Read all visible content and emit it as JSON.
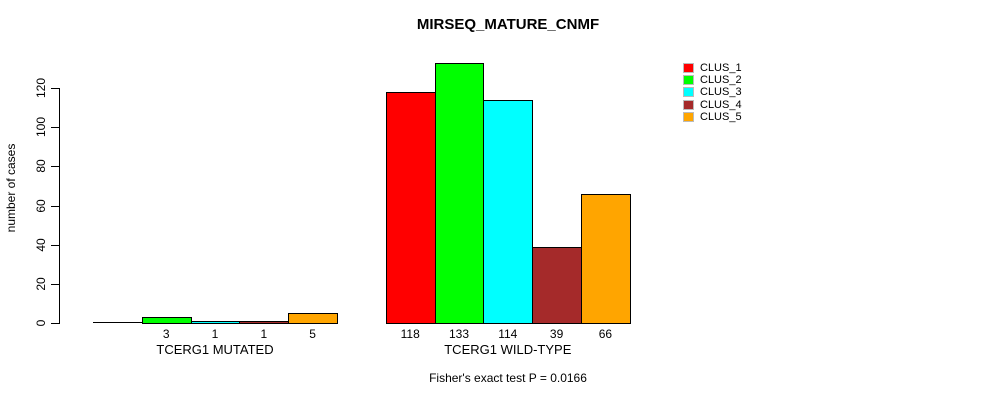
{
  "chart_data": {
    "type": "bar",
    "title": "MIRSEQ_MATURE_CNMF",
    "ylabel": "number of cases",
    "xlabel": "",
    "ylim": [
      0,
      133
    ],
    "yticks": [
      0,
      20,
      40,
      60,
      80,
      100,
      120
    ],
    "grid": false,
    "legend_position": "top-right",
    "categories": [
      "TCERG1 MUTATED",
      "TCERG1 WILD-TYPE"
    ],
    "groups": [
      {
        "label": "TCERG1 MUTATED",
        "values": [
          0,
          3,
          1,
          1,
          5
        ],
        "value_labels": [
          "",
          "3",
          "1",
          "1",
          "5"
        ]
      },
      {
        "label": "TCERG1 WILD-TYPE",
        "values": [
          118,
          133,
          114,
          39,
          66
        ],
        "value_labels": [
          "118",
          "133",
          "114",
          "39",
          "66"
        ]
      }
    ],
    "series": [
      {
        "name": "CLUS_1",
        "color": "#FF0000"
      },
      {
        "name": "CLUS_2",
        "color": "#00FF00"
      },
      {
        "name": "CLUS_3",
        "color": "#00FFFF"
      },
      {
        "name": "CLUS_4",
        "color": "#A52A2A"
      },
      {
        "name": "CLUS_5",
        "color": "#FFA500"
      }
    ],
    "footnote": "Fisher's exact test P = 0.0166"
  }
}
